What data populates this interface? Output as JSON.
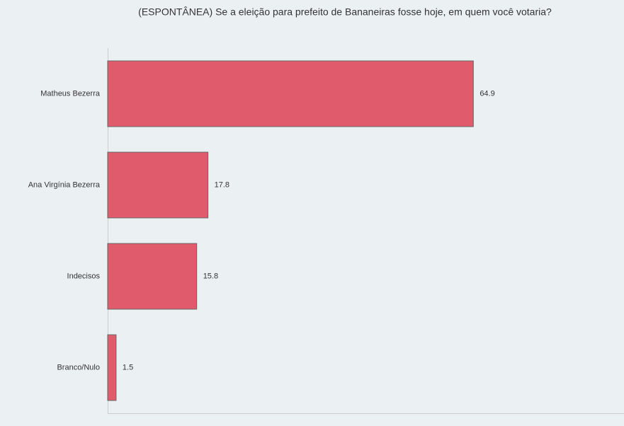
{
  "chart_data": {
    "type": "bar",
    "orientation": "horizontal",
    "title": "(ESPONTÂNEA) Se a eleição para prefeito de Bananeiras fosse hoje, em quem você votaria?",
    "categories": [
      "Matheus Bezerra",
      "Ana Virgínia Bezerra",
      "Indecisos",
      "Branco/Nulo"
    ],
    "values": [
      64.9,
      17.8,
      15.8,
      1.5
    ],
    "color": "#e05c6c",
    "xlim": [
      0,
      90
    ]
  }
}
